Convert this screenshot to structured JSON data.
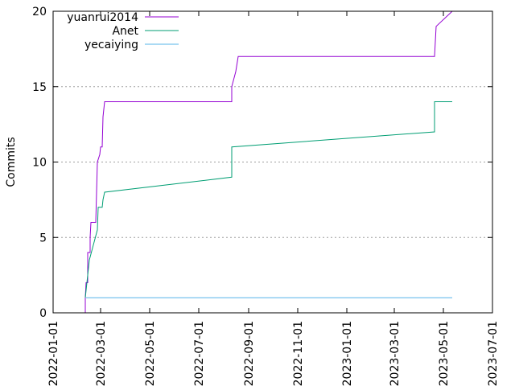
{
  "chart_data": {
    "type": "line",
    "ylabel": "Commits",
    "xlabel": "",
    "ylim": [
      0,
      20
    ],
    "xlim": [
      "2022-01-01",
      "2023-07-01"
    ],
    "yticks": [
      0,
      5,
      10,
      15,
      20
    ],
    "xticks": [
      "2022-01-01",
      "2022-03-01",
      "2022-05-01",
      "2022-07-01",
      "2022-09-01",
      "2022-11-01",
      "2023-01-01",
      "2023-03-01",
      "2023-05-01",
      "2023-07-01"
    ],
    "grid": "horizontal dotted",
    "legend_position": "top-left",
    "series": [
      {
        "name": "yuanrui2014",
        "color": "#9400d3",
        "points": [
          [
            "2022-02-10",
            0
          ],
          [
            "2022-02-10",
            1
          ],
          [
            "2022-02-11",
            2
          ],
          [
            "2022-02-13",
            2
          ],
          [
            "2022-02-13",
            4
          ],
          [
            "2022-02-16",
            4
          ],
          [
            "2022-02-16",
            5
          ],
          [
            "2022-02-17",
            6
          ],
          [
            "2022-02-23",
            6
          ],
          [
            "2022-02-24",
            8
          ],
          [
            "2022-02-25",
            10
          ],
          [
            "2022-02-28",
            10.5
          ],
          [
            "2022-03-01",
            11
          ],
          [
            "2022-03-03",
            11
          ],
          [
            "2022-03-04",
            13
          ],
          [
            "2022-03-06",
            14
          ],
          [
            "2022-08-11",
            14
          ],
          [
            "2022-08-11",
            15
          ],
          [
            "2022-08-16",
            16
          ],
          [
            "2022-08-19",
            17
          ],
          [
            "2023-04-20",
            17
          ],
          [
            "2023-04-21",
            18
          ],
          [
            "2023-04-22",
            19
          ],
          [
            "2023-05-12",
            20
          ]
        ]
      },
      {
        "name": "Anet",
        "color": "#009e73",
        "points": [
          [
            "2022-02-10",
            1
          ],
          [
            "2022-02-13",
            2.5
          ],
          [
            "2022-02-15",
            3.5
          ],
          [
            "2022-02-20",
            4.5
          ],
          [
            "2022-02-25",
            5.5
          ],
          [
            "2022-02-26",
            7
          ],
          [
            "2022-03-03",
            7
          ],
          [
            "2022-03-04",
            7.5
          ],
          [
            "2022-03-06",
            8
          ],
          [
            "2022-08-11",
            9
          ],
          [
            "2022-08-11",
            11
          ],
          [
            "2023-04-20",
            12
          ],
          [
            "2023-04-20",
            14
          ],
          [
            "2023-05-12",
            14
          ]
        ]
      },
      {
        "name": "yecaiying",
        "color": "#56b4e9",
        "points": [
          [
            "2022-02-11",
            1
          ],
          [
            "2023-05-12",
            1
          ]
        ]
      }
    ]
  }
}
